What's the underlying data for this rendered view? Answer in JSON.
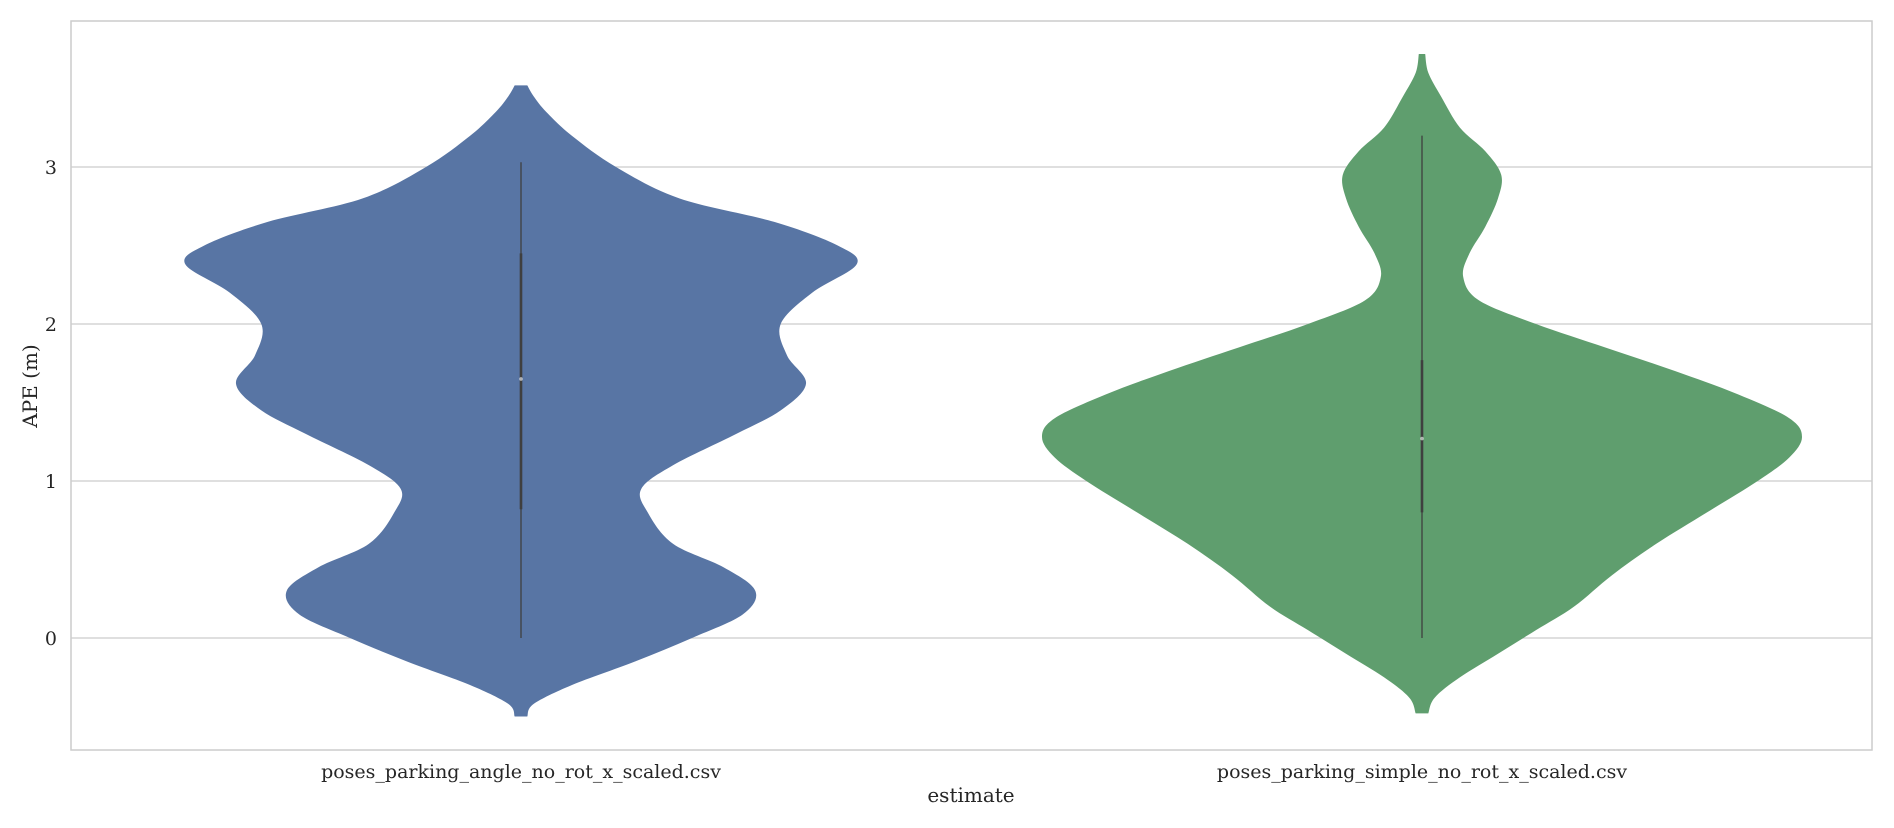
{
  "chart_data": {
    "type": "violin",
    "xlabel": "estimate",
    "ylabel": "APE (m)",
    "ylim": [
      -0.7,
      3.9
    ],
    "yticks": [
      0,
      1,
      2,
      3
    ],
    "grid": true,
    "categories": [
      "poses_parking_angle_no_rot_x_scaled.csv",
      "poses_parking_simple_no_rot_x_scaled.csv"
    ],
    "series": [
      {
        "category": "poses_parking_angle_no_rot_x_scaled.csv",
        "color": "#5875a4",
        "kde_min": -0.5,
        "kde_max": 3.52,
        "whisker_low": 0.0,
        "whisker_high": 3.03,
        "q1": 0.82,
        "median": 1.65,
        "q3": 2.45,
        "density_profile": [
          [
            -0.5,
            0.01
          ],
          [
            -0.42,
            0.02
          ],
          [
            -0.3,
            0.08
          ],
          [
            -0.15,
            0.18
          ],
          [
            0.0,
            0.27
          ],
          [
            0.15,
            0.35
          ],
          [
            0.3,
            0.37
          ],
          [
            0.45,
            0.32
          ],
          [
            0.6,
            0.24
          ],
          [
            0.8,
            0.2
          ],
          [
            0.95,
            0.19
          ],
          [
            1.1,
            0.24
          ],
          [
            1.3,
            0.34
          ],
          [
            1.45,
            0.41
          ],
          [
            1.62,
            0.45
          ],
          [
            1.8,
            0.42
          ],
          [
            2.0,
            0.41
          ],
          [
            2.2,
            0.46
          ],
          [
            2.38,
            0.53
          ],
          [
            2.5,
            0.5
          ],
          [
            2.65,
            0.4
          ],
          [
            2.8,
            0.25
          ],
          [
            3.0,
            0.15
          ],
          [
            3.2,
            0.08
          ],
          [
            3.35,
            0.04
          ],
          [
            3.45,
            0.02
          ],
          [
            3.52,
            0.01
          ]
        ]
      },
      {
        "category": "poses_parking_simple_no_rot_x_scaled.csv",
        "color": "#5f9e6e",
        "kde_min": -0.48,
        "kde_max": 3.72,
        "whisker_low": 0.0,
        "whisker_high": 3.2,
        "q1": 0.8,
        "median": 1.27,
        "q3": 1.77,
        "density_profile": [
          [
            -0.48,
            0.01
          ],
          [
            -0.38,
            0.02
          ],
          [
            -0.25,
            0.06
          ],
          [
            -0.1,
            0.12
          ],
          [
            0.05,
            0.18
          ],
          [
            0.2,
            0.24
          ],
          [
            0.4,
            0.3
          ],
          [
            0.6,
            0.37
          ],
          [
            0.8,
            0.45
          ],
          [
            1.0,
            0.53
          ],
          [
            1.15,
            0.58
          ],
          [
            1.28,
            0.6
          ],
          [
            1.4,
            0.58
          ],
          [
            1.55,
            0.5
          ],
          [
            1.7,
            0.4
          ],
          [
            1.85,
            0.29
          ],
          [
            2.0,
            0.18
          ],
          [
            2.15,
            0.09
          ],
          [
            2.3,
            0.065
          ],
          [
            2.45,
            0.075
          ],
          [
            2.62,
            0.1
          ],
          [
            2.8,
            0.12
          ],
          [
            2.95,
            0.125
          ],
          [
            3.1,
            0.1
          ],
          [
            3.25,
            0.06
          ],
          [
            3.45,
            0.03
          ],
          [
            3.6,
            0.01
          ],
          [
            3.72,
            0.005
          ]
        ]
      }
    ]
  }
}
